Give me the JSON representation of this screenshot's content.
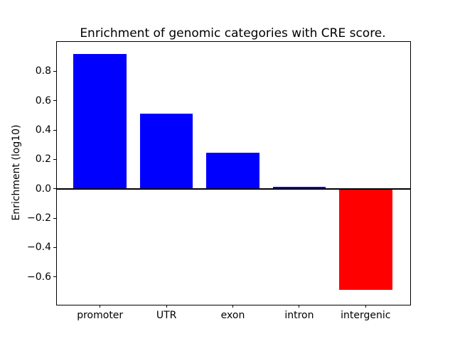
{
  "chart_data": {
    "type": "bar",
    "title": "Enrichment of genomic categories with CRE score.",
    "xlabel": "",
    "ylabel": "Enrichment (log10)",
    "categories": [
      "promoter",
      "UTR",
      "exon",
      "intron",
      "intergenic"
    ],
    "values": [
      0.92,
      0.51,
      0.245,
      0.013,
      -0.69
    ],
    "bar_colors": [
      "#0000ff",
      "#0000ff",
      "#0000ff",
      "#0000ff",
      "#ff0000"
    ],
    "positive_color": "#0000ff",
    "negative_color": "#ff0000",
    "ylim": [
      -0.78,
      1.0
    ],
    "xlim": [
      -0.65,
      4.65
    ],
    "bar_width": 0.8,
    "yticks": [
      {
        "value": 0.8,
        "label": "0.8"
      },
      {
        "value": 0.6,
        "label": "0.6"
      },
      {
        "value": 0.4,
        "label": "0.4"
      },
      {
        "value": 0.2,
        "label": "0.2"
      },
      {
        "value": 0.0,
        "label": "0.0"
      },
      {
        "value": -0.2,
        "label": "−0.2"
      },
      {
        "value": -0.4,
        "label": "−0.4"
      },
      {
        "value": -0.6,
        "label": "−0.6"
      }
    ],
    "grid": false,
    "legend": null,
    "zero_line": true
  }
}
